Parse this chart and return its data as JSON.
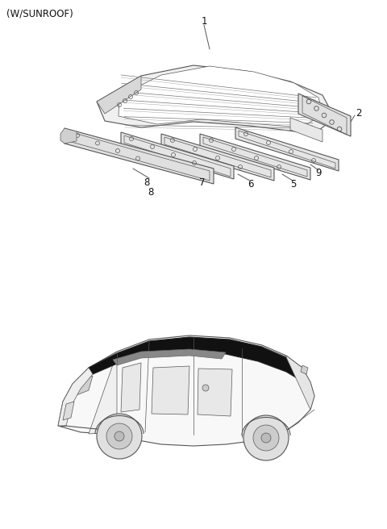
{
  "title": "(W/SUNROOF)",
  "title_fontsize": 8.5,
  "bg_color": "#ffffff",
  "line_color": "#555555",
  "label_color": "#111111",
  "label_fontsize": 8.5,
  "fig_width": 4.8,
  "fig_height": 6.56,
  "dpi": 100,
  "top_panel": {
    "y_min": 0.44,
    "y_max": 0.98
  },
  "bot_panel": {
    "y_min": 0.02,
    "y_max": 0.4
  }
}
